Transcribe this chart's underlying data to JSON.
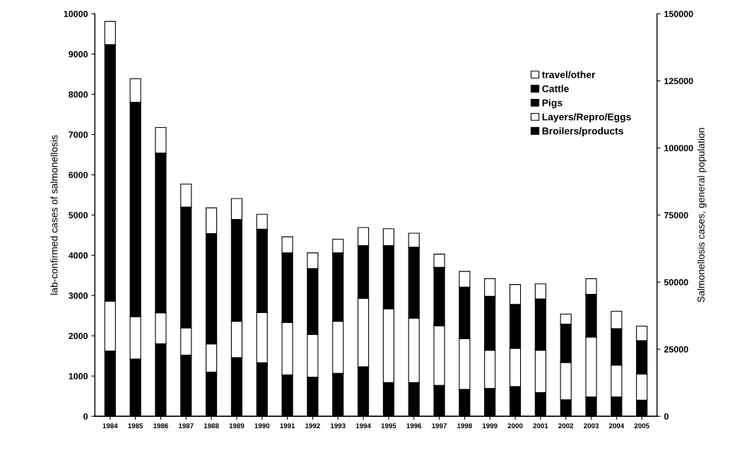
{
  "chart_data": {
    "type": "bar",
    "stacked": true,
    "categories": [
      "1984",
      "1985",
      "1986",
      "1987",
      "1988",
      "1989",
      "1990",
      "1991",
      "1992",
      "1993",
      "1994",
      "1995",
      "1996",
      "1997",
      "1998",
      "1999",
      "2000",
      "2001",
      "2002",
      "2003",
      "2004",
      "2005"
    ],
    "series": [
      {
        "name": "Broilers/products",
        "color": "#000000",
        "values": [
          1620,
          1425,
          1800,
          1520,
          1100,
          1460,
          1330,
          1030,
          970,
          1070,
          1230,
          840,
          840,
          770,
          670,
          690,
          740,
          590,
          410,
          480,
          480,
          400
        ]
      },
      {
        "name": "Layers/Repro/Eggs",
        "color": "#ffffff",
        "values": [
          1240,
          1045,
          770,
          680,
          700,
          900,
          1250,
          1300,
          1060,
          1290,
          1700,
          1830,
          1600,
          1480,
          1260,
          950,
          950,
          1050,
          930,
          1490,
          790,
          650
        ]
      },
      {
        "name": "Pigs",
        "color": "#000000",
        "values": [
          6375,
          5330,
          3970,
          3000,
          2740,
          2530,
          2070,
          1730,
          1640,
          1700,
          1310,
          1570,
          1760,
          1450,
          1280,
          1340,
          1090,
          1275,
          950,
          1060,
          910,
          830
        ]
      },
      {
        "name": "Cattle",
        "color": "#000000",
        "values": [
          null,
          null,
          null,
          null,
          null,
          null,
          null,
          null,
          null,
          null,
          null,
          null,
          null,
          null,
          null,
          null,
          null,
          null,
          null,
          null,
          null,
          null
        ]
      },
      {
        "name": "travel/other",
        "color": "#ffffff",
        "values": [
          575,
          585,
          635,
          570,
          640,
          520,
          370,
          400,
          390,
          340,
          450,
          420,
          350,
          330,
          390,
          440,
          495,
          375,
          250,
          390,
          430,
          360
        ]
      }
    ],
    "ylabel": "lab-confirmed cases of salmonellosis",
    "y2label": "Salmonellosis cases, general population",
    "ylim": [
      0,
      10000
    ],
    "yticks": [
      0,
      1000,
      2000,
      3000,
      4000,
      5000,
      6000,
      7000,
      8000,
      9000,
      10000
    ],
    "y2lim": [
      0,
      150000
    ],
    "y2ticks": [
      0,
      25000,
      50000,
      75000,
      100000,
      125000,
      150000
    ],
    "legend": "top right",
    "grid": false
  }
}
